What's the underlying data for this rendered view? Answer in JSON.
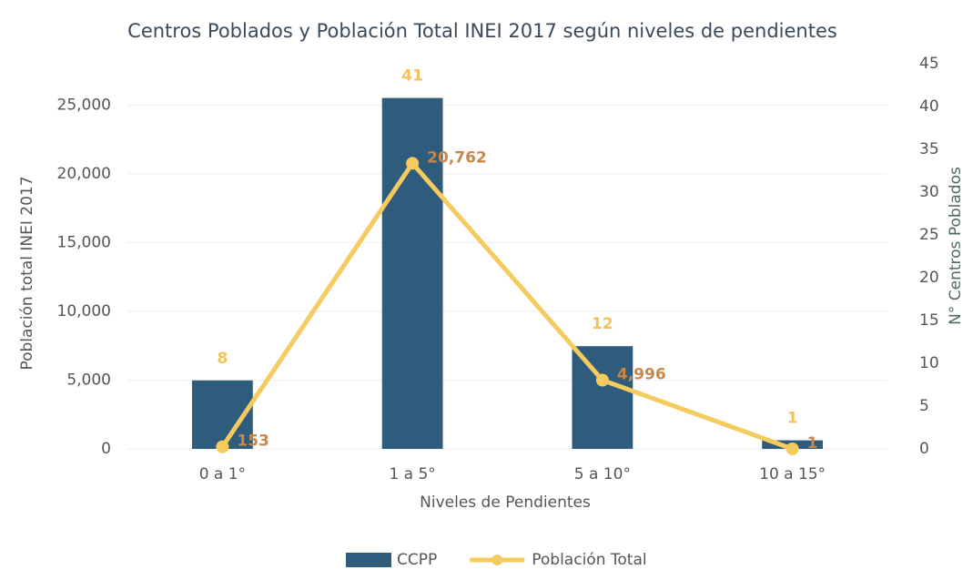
{
  "chart_data": {
    "type": "bar",
    "title": "Centros Poblados y Población Total INEI 2017 según niveles de pendientes",
    "x_label": "Niveles de Pendientes",
    "y_label": "Población total INEI 2017",
    "y2_label": "N° Centros Poblados",
    "categories": [
      "0 a 1°",
      "1 a 5°",
      "5 a 10°",
      "10 a 15°"
    ],
    "series": [
      {
        "name": "CCPP",
        "type": "bar",
        "axis": "y2",
        "color": "#2f5b7c",
        "label_color": "#f0c35c",
        "values": [
          8,
          41,
          12,
          1
        ]
      },
      {
        "name": "Población Total",
        "type": "line",
        "axis": "y",
        "color": "#f6cb5e",
        "label_color": "#c7884a",
        "values": [
          153,
          20762,
          4996,
          1
        ],
        "value_labels": [
          "153",
          "20,762",
          "4,996",
          "1"
        ]
      }
    ],
    "ylim": [
      0,
      28000
    ],
    "yticks": [
      0,
      {
        "value": 5000,
        "label": "5,000"
      },
      {
        "value": 10000,
        "label": "10,000"
      },
      {
        "value": 15000,
        "label": "15,000"
      },
      {
        "value": 20000,
        "label": "20,000"
      },
      {
        "value": 25000,
        "label": "25,000"
      }
    ],
    "y2lim": [
      0,
      45
    ],
    "y2ticks": [
      0,
      5,
      10,
      15,
      20,
      25,
      30,
      35,
      40,
      45
    ],
    "grid": true,
    "legend": "bottom"
  }
}
